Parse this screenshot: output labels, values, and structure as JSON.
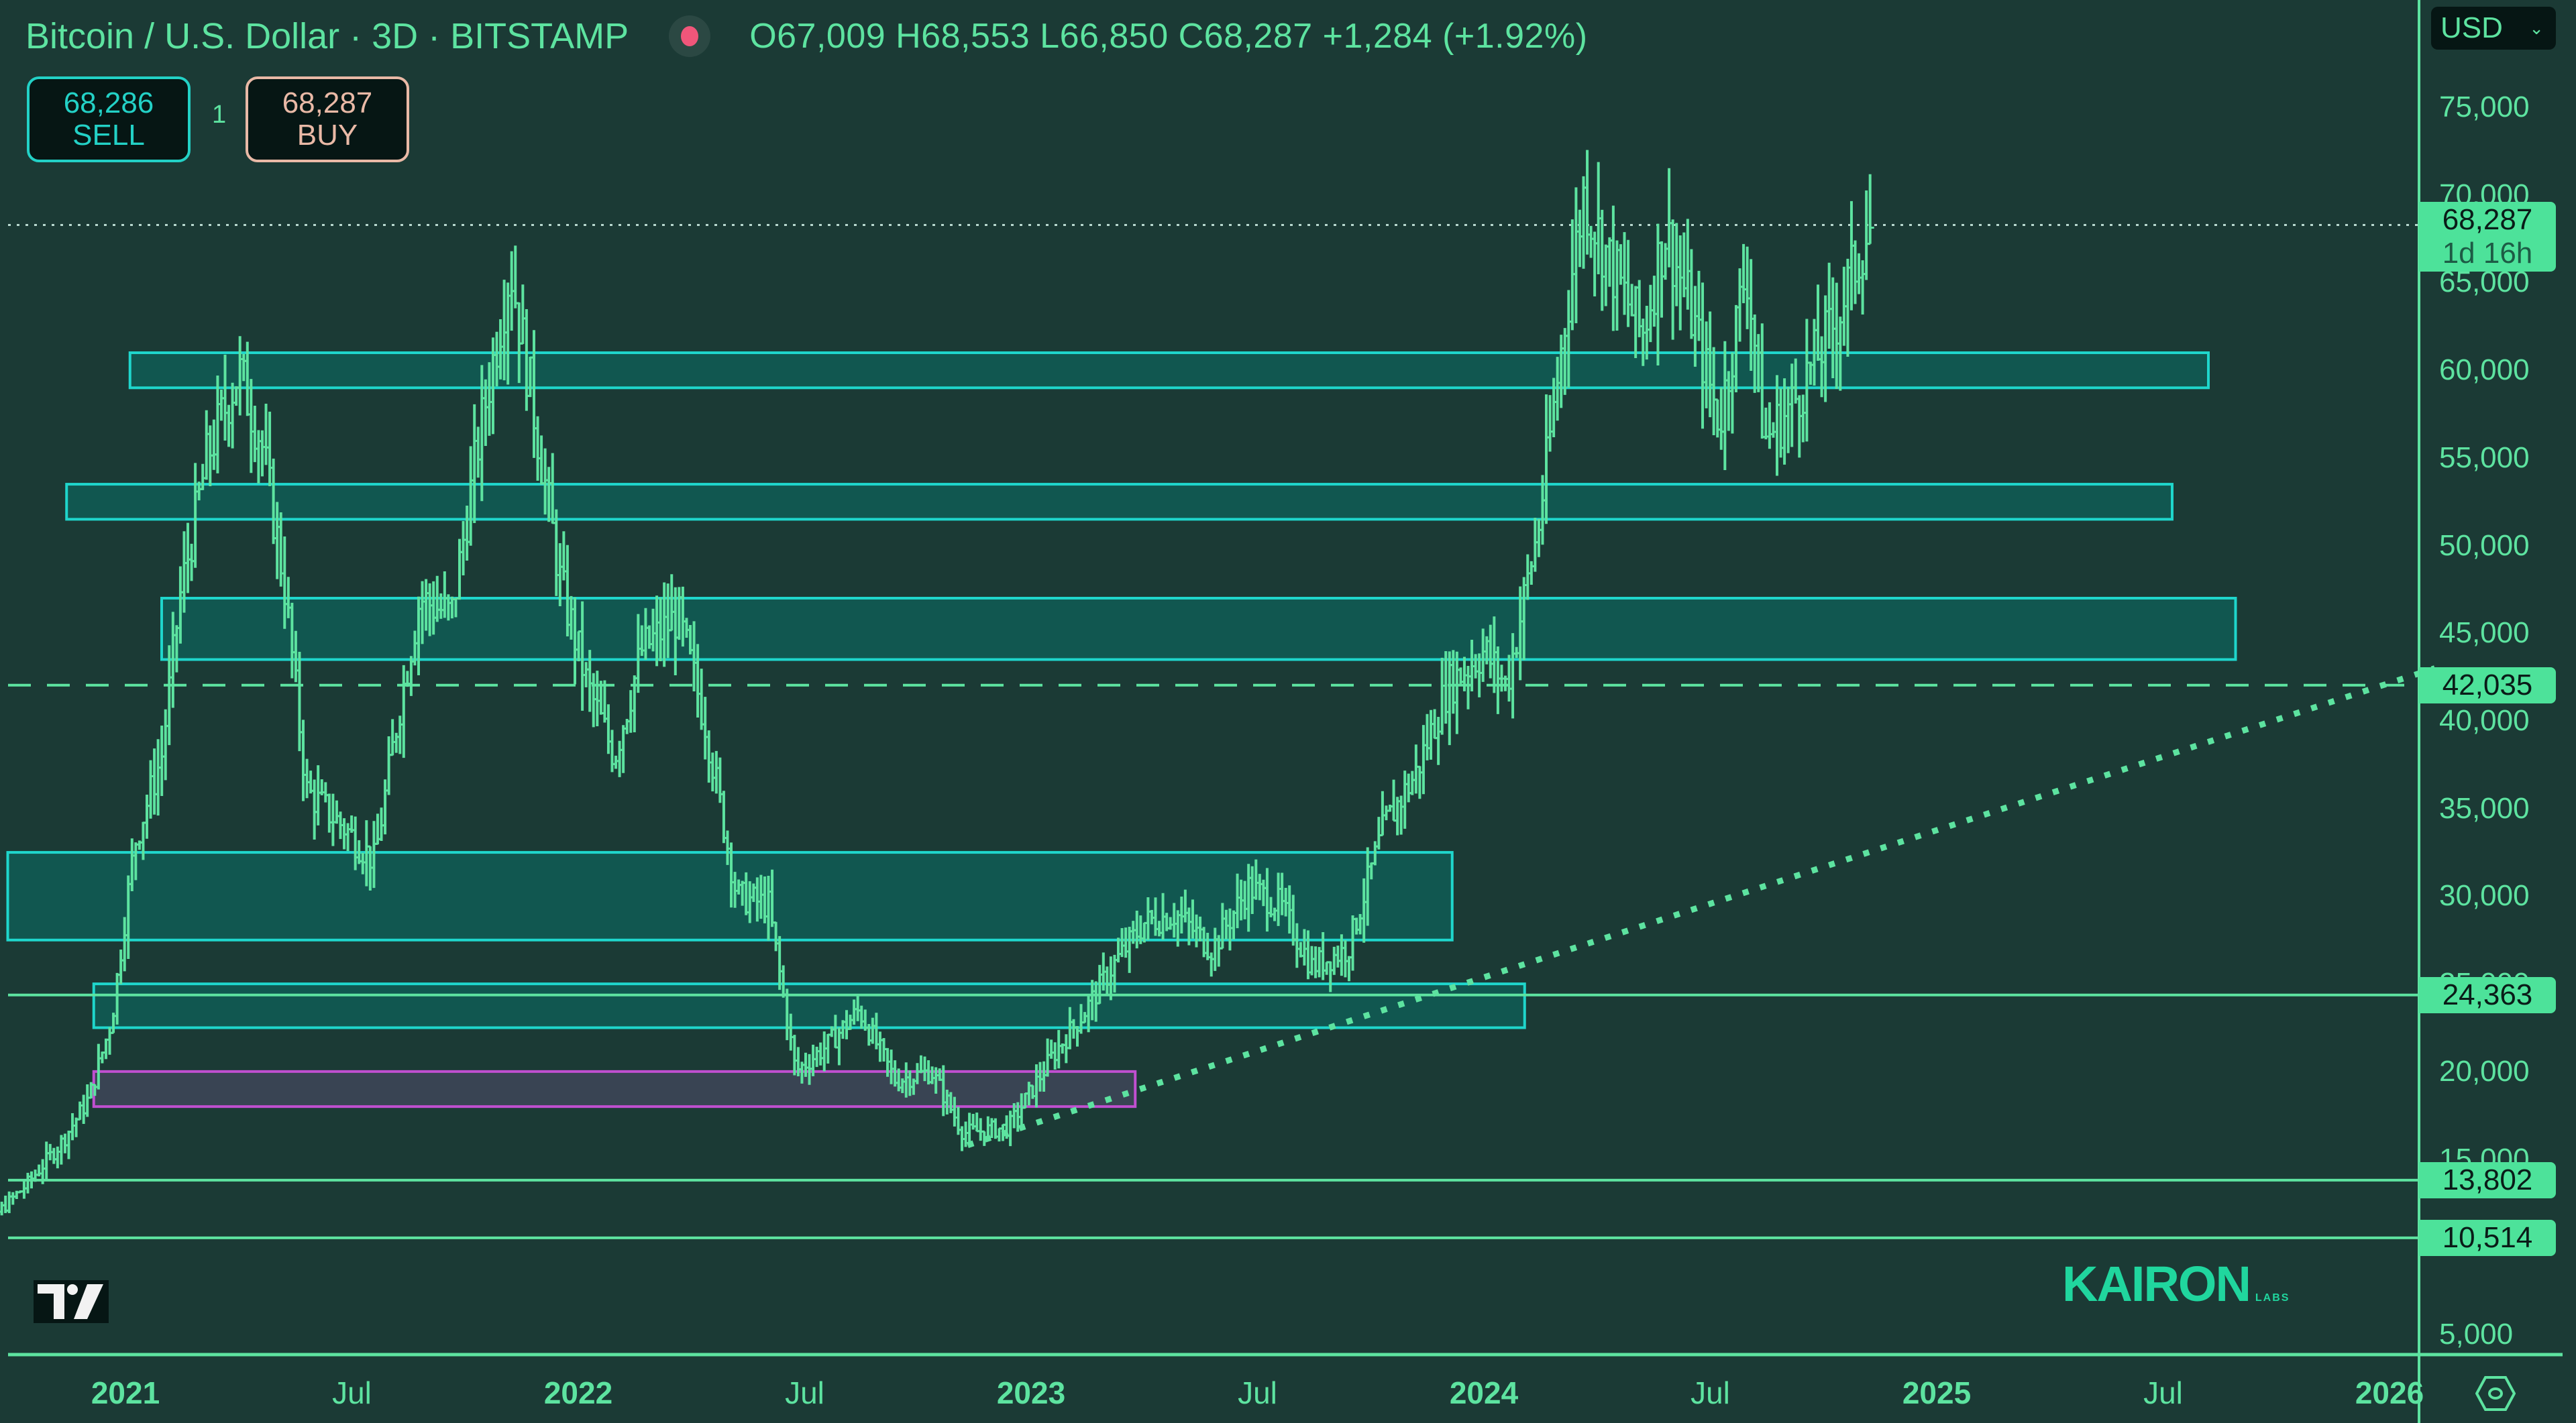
{
  "header": {
    "title": "Bitcoin / U.S. Dollar · 3D · BITSTAMP",
    "ohlc": "O67,009 H68,553 L66,850 C68,287 +1,284 (+1.92%)",
    "recording_dot_color": "#f0567a"
  },
  "trade": {
    "sell_price": "68,286",
    "sell_label": "SELL",
    "quantity": "1",
    "buy_price": "68,287",
    "buy_label": "BUY"
  },
  "currency_select": {
    "value": "USD"
  },
  "price_labels": {
    "current": {
      "value": "68,287",
      "countdown": "1d 16h"
    },
    "levels": [
      "42,035",
      "24,363",
      "13,802",
      "10,514"
    ]
  },
  "watermark": {
    "brand": "KAIRON",
    "sub": "LABS"
  },
  "colors": {
    "background": "#1b3a35",
    "bars": "#5de3a0",
    "zone_fill": "#0f5f58",
    "zone_border": "#1fd6cc",
    "purple_zone_border": "#c04fd0",
    "purple_zone_fill": "#3e4658",
    "label_bg": "#4de29a"
  },
  "chart_data": {
    "type": "bar",
    "subtype": "ohlc",
    "title": "Bitcoin / U.S. Dollar · 3D · BITSTAMP",
    "xlabel": "",
    "ylabel": "USD",
    "ylim": [
      5000,
      77000
    ],
    "grid": false,
    "y_ticks": [
      "75,000",
      "70,000",
      "65,000",
      "60,000",
      "55,000",
      "50,000",
      "45,000",
      "40,000",
      "35,000",
      "30,000",
      "25,000",
      "20,000",
      "15,000",
      "5,000"
    ],
    "x_ticks": [
      {
        "label": "2021",
        "major": true,
        "t": 2021.0
      },
      {
        "label": "Jul",
        "major": false,
        "t": 2021.5
      },
      {
        "label": "2022",
        "major": true,
        "t": 2022.0
      },
      {
        "label": "Jul",
        "major": false,
        "t": 2022.5
      },
      {
        "label": "2023",
        "major": true,
        "t": 2023.0
      },
      {
        "label": "Jul",
        "major": false,
        "t": 2023.5
      },
      {
        "label": "2024",
        "major": true,
        "t": 2024.0
      },
      {
        "label": "Jul",
        "major": false,
        "t": 2024.5
      },
      {
        "label": "2025",
        "major": true,
        "t": 2025.0
      },
      {
        "label": "Jul",
        "major": false,
        "t": 2025.5
      },
      {
        "label": "2026",
        "major": true,
        "t": 2026.0
      }
    ],
    "last": {
      "open": 67009,
      "high": 68553,
      "low": 66850,
      "close": 68287,
      "change": 1284,
      "change_pct": 1.92
    },
    "price_path": [
      [
        2020.62,
        10500
      ],
      [
        2020.7,
        11500
      ],
      [
        2020.78,
        13500
      ],
      [
        2020.86,
        16000
      ],
      [
        2020.92,
        18500
      ],
      [
        2020.97,
        23000
      ],
      [
        2021.02,
        33000
      ],
      [
        2021.08,
        38000
      ],
      [
        2021.12,
        47000
      ],
      [
        2021.18,
        55000
      ],
      [
        2021.25,
        60000
      ],
      [
        2021.3,
        56000
      ],
      [
        2021.35,
        48000
      ],
      [
        2021.4,
        36000
      ],
      [
        2021.48,
        34000
      ],
      [
        2021.55,
        32000
      ],
      [
        2021.6,
        40000
      ],
      [
        2021.65,
        47000
      ],
      [
        2021.72,
        46000
      ],
      [
        2021.78,
        56000
      ],
      [
        2021.85,
        66000
      ],
      [
        2021.9,
        58000
      ],
      [
        2021.96,
        48000
      ],
      [
        2022.02,
        42000
      ],
      [
        2022.08,
        38000
      ],
      [
        2022.14,
        44000
      ],
      [
        2022.22,
        46000
      ],
      [
        2022.28,
        40000
      ],
      [
        2022.35,
        30000
      ],
      [
        2022.42,
        29500
      ],
      [
        2022.48,
        20000
      ],
      [
        2022.55,
        21500
      ],
      [
        2022.62,
        23500
      ],
      [
        2022.7,
        19500
      ],
      [
        2022.78,
        20000
      ],
      [
        2022.85,
        16500
      ],
      [
        2022.95,
        16800
      ],
      [
        2023.05,
        21000
      ],
      [
        2023.12,
        23500
      ],
      [
        2023.18,
        26000
      ],
      [
        2023.25,
        28500
      ],
      [
        2023.32,
        29000
      ],
      [
        2023.4,
        27000
      ],
      [
        2023.48,
        30500
      ],
      [
        2023.55,
        29500
      ],
      [
        2023.62,
        26000
      ],
      [
        2023.7,
        27000
      ],
      [
        2023.78,
        34000
      ],
      [
        2023.85,
        37000
      ],
      [
        2023.92,
        42000
      ],
      [
        2024.0,
        44000
      ],
      [
        2024.05,
        42000
      ],
      [
        2024.12,
        51000
      ],
      [
        2024.18,
        63000
      ],
      [
        2024.22,
        70000
      ],
      [
        2024.28,
        66000
      ],
      [
        2024.35,
        62000
      ],
      [
        2024.4,
        68000
      ],
      [
        2024.45,
        64000
      ],
      [
        2024.52,
        57000
      ],
      [
        2024.58,
        66000
      ],
      [
        2024.62,
        56000
      ],
      [
        2024.68,
        58000
      ],
      [
        2024.72,
        60000
      ],
      [
        2024.78,
        63000
      ],
      [
        2024.84,
        67500
      ],
      [
        2024.86,
        68287
      ]
    ],
    "horizontal_levels": [
      {
        "price": 42035,
        "style": "dashed"
      },
      {
        "price": 24363,
        "style": "solid"
      },
      {
        "price": 13802,
        "style": "solid"
      },
      {
        "price": 10514,
        "style": "solid"
      },
      {
        "price": 68287,
        "style": "dotted",
        "note": "current price"
      }
    ],
    "zones": [
      {
        "from_t": 2021.01,
        "to_t": 2025.6,
        "low": 59000,
        "high": 61000,
        "color": "teal"
      },
      {
        "from_t": 2020.87,
        "to_t": 2025.52,
        "low": 51500,
        "high": 53500,
        "color": "teal"
      },
      {
        "from_t": 2021.08,
        "to_t": 2025.66,
        "low": 43500,
        "high": 47000,
        "color": "teal"
      },
      {
        "from_t": 2020.74,
        "to_t": 2023.93,
        "low": 27500,
        "high": 32500,
        "color": "teal"
      },
      {
        "from_t": 2020.93,
        "to_t": 2024.09,
        "low": 22500,
        "high": 25000,
        "color": "teal"
      },
      {
        "from_t": 2020.93,
        "to_t": 2023.23,
        "low": 18000,
        "high": 20000,
        "color": "purple"
      }
    ],
    "trendline": {
      "style": "dotted",
      "from": [
        2022.86,
        15800
      ],
      "to": [
        2026.1,
        43000
      ]
    }
  }
}
